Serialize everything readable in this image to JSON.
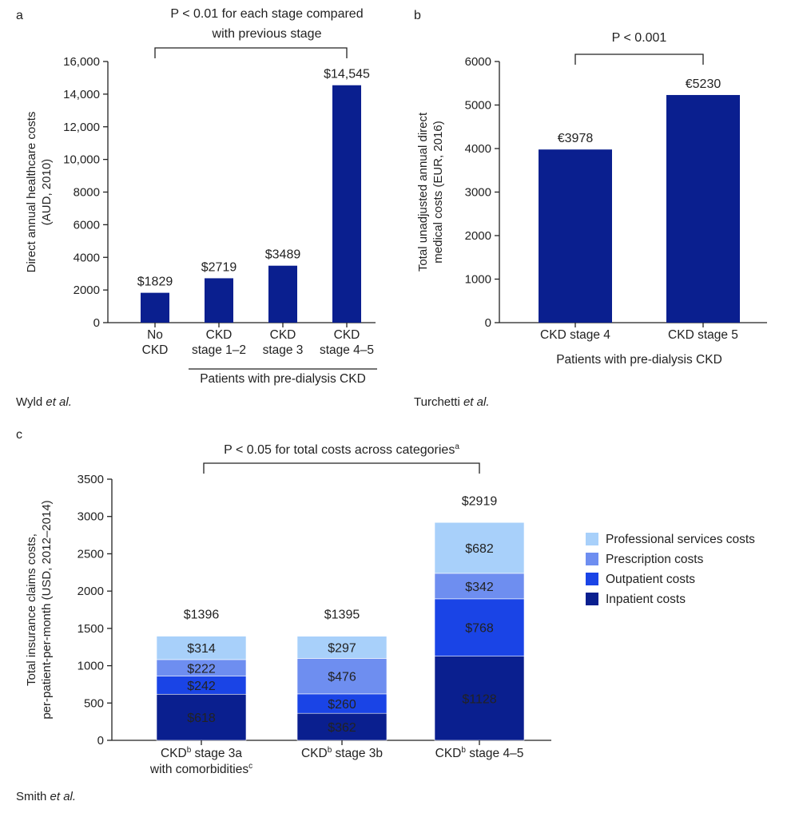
{
  "colors": {
    "bar": "#0a1f8f",
    "inpatient": "#0a1f8f",
    "outpatient": "#1a44e6",
    "prescription": "#6e8ef0",
    "professional": "#a8d0fa",
    "axis": "#222222"
  },
  "chart_data": [
    {
      "id": "a",
      "type": "bar",
      "panel_label": "a",
      "categories": [
        [
          "No",
          "CKD"
        ],
        [
          "CKD",
          "stage 1–2"
        ],
        [
          "CKD",
          "stage 3"
        ],
        [
          "CKD",
          "stage 4–5"
        ]
      ],
      "values": [
        1829,
        2719,
        3489,
        14545
      ],
      "value_labels": [
        "$1829",
        "$2719",
        "$3489",
        "$14,545"
      ],
      "ylabel": [
        "Direct annual healthcare costs",
        "(AUD, 2010)"
      ],
      "ylim": [
        0,
        16000
      ],
      "yticks": [
        0,
        2000,
        4000,
        6000,
        8000,
        10000,
        12000,
        14000,
        16000
      ],
      "ytick_labels": [
        "0",
        "2000",
        "4000",
        "6000",
        "8000",
        "10,000",
        "12,000",
        "14,000",
        "16,000"
      ],
      "significance": [
        "P < 0.01 for each stage compared",
        "with previous stage"
      ],
      "group_label": "Patients with pre-dialysis CKD",
      "source": {
        "name": "Wyld ",
        "etal": "et al."
      }
    },
    {
      "id": "b",
      "type": "bar",
      "panel_label": "b",
      "categories": [
        [
          "CKD stage 4"
        ],
        [
          "CKD stage 5"
        ]
      ],
      "values": [
        3978,
        5230
      ],
      "value_labels": [
        "€3978",
        "€5230"
      ],
      "ylabel": [
        "Total unadjusted annual direct",
        "medical costs (EUR, 2016)"
      ],
      "ylim": [
        0,
        6000
      ],
      "yticks": [
        0,
        1000,
        2000,
        3000,
        4000,
        5000,
        6000
      ],
      "ytick_labels": [
        "0",
        "1000",
        "2000",
        "3000",
        "4000",
        "5000",
        "6000"
      ],
      "significance": [
        "P < 0.001"
      ],
      "xlabel": "Patients with pre-dialysis CKD",
      "source": {
        "name": "Turchetti ",
        "etal": "et al."
      }
    },
    {
      "id": "c",
      "type": "bar",
      "stacked": true,
      "panel_label": "c",
      "categories": [
        {
          "lines": [
            {
              "t": "CKD",
              "sup": "b",
              "rest": " stage 3a"
            },
            {
              "t": "with comorbidities",
              "sup": "c",
              "rest": ""
            }
          ]
        },
        {
          "lines": [
            {
              "t": "CKD",
              "sup": "b",
              "rest": " stage 3b"
            }
          ]
        },
        {
          "lines": [
            {
              "t": "CKD",
              "sup": "b",
              "rest": " stage 4–5"
            }
          ]
        }
      ],
      "series": [
        {
          "name": "Inpatient costs",
          "color_key": "inpatient",
          "values": [
            618,
            362,
            1128
          ],
          "labels": [
            "$618",
            "$362",
            "$1128"
          ]
        },
        {
          "name": "Outpatient costs",
          "color_key": "outpatient",
          "values": [
            242,
            260,
            768
          ],
          "labels": [
            "$242",
            "$260",
            "$768"
          ]
        },
        {
          "name": "Prescription costs",
          "color_key": "prescription",
          "values": [
            222,
            476,
            342
          ],
          "labels": [
            "$222",
            "$476",
            "$342"
          ]
        },
        {
          "name": "Professional services costs",
          "color_key": "professional",
          "values": [
            314,
            297,
            682
          ],
          "labels": [
            "$314",
            "$297",
            "$682"
          ]
        }
      ],
      "totals": [
        "$1396",
        "$1395",
        "$2919"
      ],
      "total_values": [
        1396,
        1395,
        2919
      ],
      "ylabel": [
        "Total insurance claims costs,",
        "per-patient-per-month (USD, 2012–2014)"
      ],
      "ylim": [
        0,
        3500
      ],
      "yticks": [
        0,
        500,
        1000,
        1500,
        2000,
        2500,
        3000,
        3500
      ],
      "ytick_labels": [
        "0",
        "500",
        "1000",
        "1500",
        "2000",
        "2500",
        "3000",
        "3500"
      ],
      "significance": {
        "text": "P < 0.05 for total costs across categories",
        "sup": "a"
      },
      "legend_position": "right",
      "source": {
        "name": "Smith ",
        "etal": "et al."
      }
    }
  ]
}
